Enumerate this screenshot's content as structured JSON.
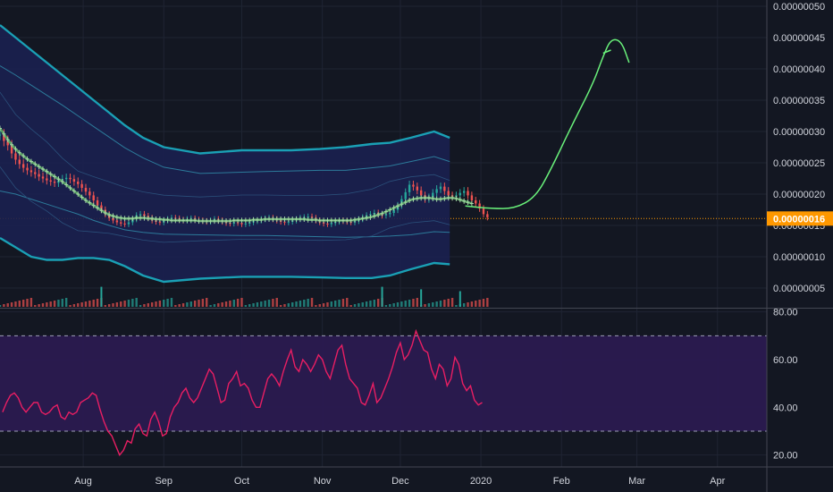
{
  "chart_data": [
    {
      "type": "candlestick",
      "panel": "price",
      "ylim": [
        2e-08,
        5.1e-07
      ],
      "y_ticks": [
        "0.00000005",
        "0.00000010",
        "0.00000015",
        "0.00000020",
        "0.00000025",
        "0.00000030",
        "0.00000035",
        "0.00000040",
        "0.00000045",
        "0.00000050"
      ],
      "y_tick_values": [
        5e-08,
        1e-07,
        1.5e-07,
        2e-07,
        2.5e-07,
        3e-07,
        3.5e-07,
        4e-07,
        4.5e-07,
        5e-07
      ],
      "last_price_label": "0.00000016",
      "last_price": 1.61e-07,
      "x_labels": [
        "Aug",
        "Sep",
        "Oct",
        "Nov",
        "Dec",
        "2020",
        "Feb",
        "Mar",
        "Apr"
      ],
      "x_label_dates": [
        "2019-08-01",
        "2019-09-01",
        "2019-10-01",
        "2019-11-01",
        "2019-12-01",
        "2020-01-01",
        "2020-02-01",
        "2020-03-01",
        "2020-04-01"
      ],
      "x_range": [
        "2019-06-30",
        "2020-04-20"
      ],
      "grid": true,
      "candles": {
        "start_date": "2019-06-30",
        "close": [
          2.95e-07,
          2.85e-07,
          2.78e-07,
          2.65e-07,
          2.55e-07,
          2.48e-07,
          2.42e-07,
          2.38e-07,
          2.35e-07,
          2.32e-07,
          2.28e-07,
          2.25e-07,
          2.22e-07,
          2.2e-07,
          2.18e-07,
          2.22e-07,
          2.24e-07,
          2.26e-07,
          2.24e-07,
          2.2e-07,
          2.16e-07,
          2.1e-07,
          2.04e-07,
          1.98e-07,
          1.9e-07,
          1.82e-07,
          1.75e-07,
          1.68e-07,
          1.62e-07,
          1.58e-07,
          1.55e-07,
          1.53e-07,
          1.52e-07,
          1.55e-07,
          1.6e-07,
          1.66e-07,
          1.68e-07,
          1.65e-07,
          1.62e-07,
          1.58e-07,
          1.56e-07,
          1.55e-07,
          1.58e-07,
          1.6e-07,
          1.62e-07,
          1.61e-07,
          1.59e-07,
          1.58e-07,
          1.6e-07,
          1.61e-07,
          1.59e-07,
          1.58e-07,
          1.57e-07,
          1.56e-07,
          1.58e-07,
          1.6e-07,
          1.58e-07,
          1.56e-07,
          1.54e-07,
          1.53e-07,
          1.55e-07,
          1.54e-07,
          1.52e-07,
          1.53e-07,
          1.55e-07,
          1.57e-07,
          1.58e-07,
          1.6e-07,
          1.61e-07,
          1.62e-07,
          1.6e-07,
          1.58e-07,
          1.56e-07,
          1.55e-07,
          1.56e-07,
          1.58e-07,
          1.6e-07,
          1.62e-07,
          1.63e-07,
          1.64e-07,
          1.62e-07,
          1.58e-07,
          1.55e-07,
          1.53e-07,
          1.52e-07,
          1.54e-07,
          1.56e-07,
          1.58e-07,
          1.57e-07,
          1.56e-07,
          1.55e-07,
          1.57e-07,
          1.6e-07,
          1.63e-07,
          1.66e-07,
          1.68e-07,
          1.7e-07,
          1.68e-07,
          1.66e-07,
          1.68e-07,
          1.7e-07,
          1.75e-07,
          1.82e-07,
          1.92e-07,
          2.03e-07,
          2.15e-07,
          2.12e-07,
          2.06e-07,
          1.98e-07,
          1.92e-07,
          1.95e-07,
          2.02e-07,
          2.08e-07,
          2.12e-07,
          2.05e-07,
          1.98e-07,
          1.96e-07,
          1.98e-07,
          2.02e-07,
          2.05e-07,
          1.98e-07,
          1.9e-07,
          1.85e-07,
          1.77e-07,
          1.68e-07,
          1.63e-07
        ],
        "volume_spikes": [
          [
            26,
            5.2e-08
          ],
          [
            98,
            5.2e-08
          ],
          [
            108,
            4.8e-08
          ],
          [
            118,
            4.5e-08
          ]
        ]
      },
      "ma": [
        3.05e-07,
        2.96e-07,
        2.87e-07,
        2.79e-07,
        2.72e-07,
        2.66e-07,
        2.61e-07,
        2.56e-07,
        2.52e-07,
        2.48e-07,
        2.44e-07,
        2.4e-07,
        2.36e-07,
        2.32e-07,
        2.28e-07,
        2.24e-07,
        2.2e-07,
        2.15e-07,
        2.1e-07,
        2.05e-07,
        2e-07,
        1.95e-07,
        1.9e-07,
        1.86e-07,
        1.82e-07,
        1.78e-07,
        1.74e-07,
        1.7e-07,
        1.67e-07,
        1.65e-07,
        1.63e-07,
        1.62e-07,
        1.61e-07,
        1.61e-07,
        1.61e-07,
        1.62e-07,
        1.62e-07,
        1.62e-07,
        1.61e-07,
        1.61e-07,
        1.6e-07,
        1.6e-07,
        1.59e-07,
        1.59e-07,
        1.58e-07,
        1.58e-07,
        1.58e-07,
        1.58e-07,
        1.58e-07,
        1.58e-07,
        1.58e-07,
        1.57e-07,
        1.57e-07,
        1.57e-07,
        1.57e-07,
        1.57e-07,
        1.57e-07,
        1.57e-07,
        1.57e-07,
        1.57e-07,
        1.58e-07,
        1.58e-07,
        1.58e-07,
        1.58e-07,
        1.58e-07,
        1.59e-07,
        1.59e-07,
        1.59e-07,
        1.6e-07,
        1.6e-07,
        1.6e-07,
        1.6e-07,
        1.6e-07,
        1.6e-07,
        1.6e-07,
        1.6e-07,
        1.6e-07,
        1.6e-07,
        1.6e-07,
        1.59e-07,
        1.59e-07,
        1.59e-07,
        1.58e-07,
        1.58e-07,
        1.58e-07,
        1.58e-07,
        1.58e-07,
        1.58e-07,
        1.58e-07,
        1.58e-07,
        1.58e-07,
        1.59e-07,
        1.6e-07,
        1.61e-07,
        1.62e-07,
        1.63e-07,
        1.65e-07,
        1.67e-07,
        1.69e-07,
        1.72e-07,
        1.75e-07,
        1.78e-07,
        1.81e-07,
        1.84e-07,
        1.87e-07,
        1.9e-07,
        1.92e-07,
        1.93e-07,
        1.94e-07,
        1.94e-07,
        1.94e-07,
        1.93e-07,
        1.92e-07,
        1.92e-07,
        1.93e-07,
        1.94e-07,
        1.94e-07,
        1.93e-07,
        1.91e-07,
        1.89e-07,
        1.87e-07,
        1.85e-07
      ],
      "band_upper": [
        4.7e-07,
        4.5e-07,
        4.3e-07,
        4.1e-07,
        3.9e-07,
        3.7e-07,
        3.5e-07,
        3.3e-07,
        3.1e-07,
        2.9e-07,
        2.75e-07,
        2.65e-07,
        2.7e-07,
        2.7e-07,
        2.7e-07,
        2.72e-07,
        2.75e-07,
        2.8e-07,
        2.82e-07,
        2.9e-07,
        3e-07,
        2.9e-07
      ],
      "band_mid_upper": [
        4.05e-07,
        3.9e-07,
        3.74e-07,
        3.58e-07,
        3.42e-07,
        3.25e-07,
        3.08e-07,
        2.91e-07,
        2.74e-07,
        2.58e-07,
        2.43e-07,
        2.33e-07,
        2.35e-07,
        2.36e-07,
        2.37e-07,
        2.38e-07,
        2.38e-07,
        2.42e-07,
        2.45e-07,
        2.52e-07,
        2.6e-07,
        2.52e-07
      ],
      "band_mid_lower": [
        2.05e-07,
        2e-07,
        1.92e-07,
        1.84e-07,
        1.76e-07,
        1.68e-07,
        1.58e-07,
        1.5e-07,
        1.43e-07,
        1.39e-07,
        1.36e-07,
        1.35e-07,
        1.34e-07,
        1.34e-07,
        1.33e-07,
        1.32e-07,
        1.31e-07,
        1.32e-07,
        1.33e-07,
        1.35e-07,
        1.4e-07,
        1.39e-07
      ],
      "band_lower": [
        1.3e-07,
        1.15e-07,
        1e-07,
        9.5e-08,
        9.5e-08,
        9.8e-08,
        9.8e-08,
        9.5e-08,
        8.5e-08,
        7e-08,
        6e-08,
        6.5e-08,
        6.8e-08,
        6.8e-08,
        6.8e-08,
        6.7e-08,
        6.6e-08,
        6.6e-08,
        7e-08,
        8e-08,
        9e-08,
        8.8e-08
      ],
      "band_x_dates": [
        "2019-06-30",
        "2019-07-06",
        "2019-07-12",
        "2019-07-18",
        "2019-07-24",
        "2019-07-30",
        "2019-08-05",
        "2019-08-11",
        "2019-08-17",
        "2019-08-24",
        "2019-09-01",
        "2019-09-15",
        "2019-10-01",
        "2019-10-10",
        "2019-10-20",
        "2019-10-31",
        "2019-11-10",
        "2019-11-20",
        "2019-11-27",
        "2019-12-05",
        "2019-12-14",
        "2019-12-20"
      ],
      "drawing_path": [
        [
          "2019-12-26",
          1.81e-07
        ],
        [
          "2020-01-05",
          1.77e-07
        ],
        [
          "2020-01-14",
          1.77e-07
        ],
        [
          "2020-01-22",
          1.95e-07
        ],
        [
          "2020-01-28",
          2.4e-07
        ],
        [
          "2020-02-05",
          3.1e-07
        ],
        [
          "2020-02-13",
          3.75e-07
        ],
        [
          "2020-02-17",
          4.2e-07
        ],
        [
          "2020-02-20",
          4.48e-07
        ],
        [
          "2020-02-24",
          4.45e-07
        ],
        [
          "2020-02-27",
          4.1e-07
        ]
      ],
      "drawing_arrow": [
        [
          "2020-02-17",
          4.25e-07
        ],
        [
          "2020-02-20",
          4.3e-07
        ]
      ]
    },
    {
      "type": "line",
      "panel": "rsi",
      "ylim": [
        15,
        81
      ],
      "y_ticks": [
        "20.00",
        "40.00",
        "60.00",
        "80.00"
      ],
      "y_tick_values": [
        20,
        40,
        60,
        80
      ],
      "band": [
        30,
        70
      ],
      "start_date": "2019-07-01",
      "values": [
        38,
        42,
        45,
        46,
        44,
        40,
        38,
        40,
        42,
        42,
        38,
        37,
        38,
        40,
        41,
        36,
        35,
        38,
        37,
        38,
        42,
        43,
        44,
        46,
        45,
        39,
        34,
        30,
        28,
        24,
        20,
        22,
        26,
        25,
        31,
        33,
        29,
        28,
        35,
        38,
        34,
        28,
        29,
        36,
        40,
        42,
        46,
        48,
        44,
        42,
        44,
        48,
        52,
        56,
        54,
        48,
        42,
        43,
        50,
        52,
        55,
        49,
        50,
        48,
        43,
        40,
        40,
        46,
        52,
        54,
        52,
        49,
        55,
        60,
        64,
        57,
        55,
        60,
        58,
        55,
        58,
        62,
        60,
        55,
        52,
        58,
        64,
        66,
        58,
        52,
        50,
        48,
        42,
        41,
        45,
        50,
        42,
        44,
        48,
        52,
        57,
        63,
        67,
        60,
        62,
        66,
        72,
        68,
        64,
        63,
        56,
        52,
        58,
        56,
        49,
        52,
        61,
        58,
        50,
        47,
        49,
        43,
        41,
        42
      ]
    }
  ]
}
